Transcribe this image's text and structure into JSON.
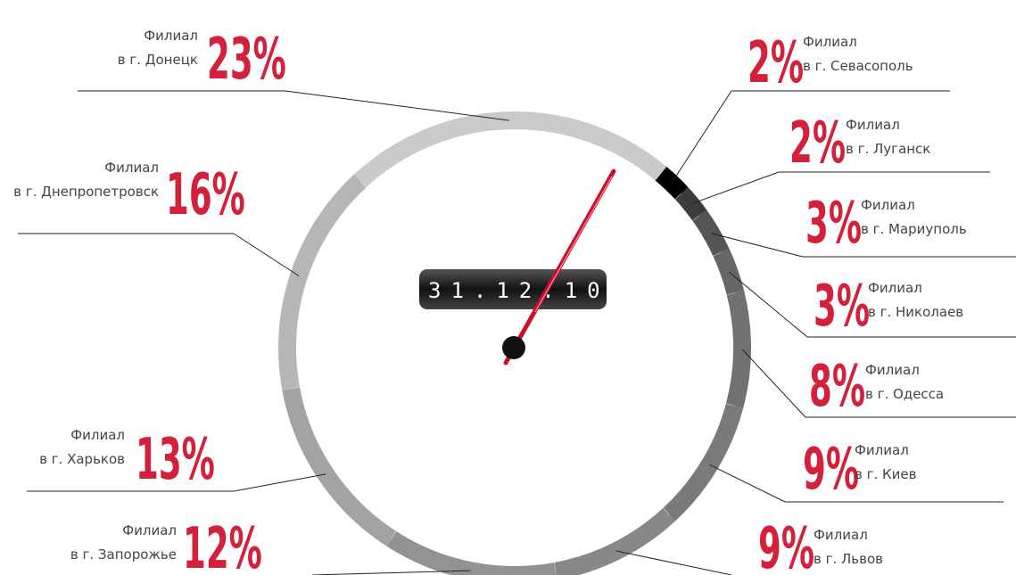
{
  "chart_data": {
    "type": "ring",
    "date": "31.12.10",
    "heading": "Филиал",
    "categories": [
      "в г. Севасополь",
      "в г. Луганск",
      "в г. Мариуполь",
      "в г. Николаев",
      "в г. Одесса",
      "в г. Киев",
      "в г. Львов",
      "в г. Запорожье",
      "в г. Харьков",
      "в г. Днепропетровск",
      "в г. Донецк"
    ],
    "values": [
      2,
      2,
      3,
      3,
      8,
      9,
      9,
      12,
      13,
      16,
      23
    ],
    "value_labels": [
      "2%",
      "2%",
      "3%",
      "3%",
      "8%",
      "9%",
      "9%",
      "12%",
      "13%",
      "16%",
      "23%"
    ],
    "colors": [
      "#000000",
      "#3c3c3c",
      "#555555",
      "#666666",
      "#717171",
      "#7a7a7a",
      "#888888",
      "#929292",
      "#a3a3a3",
      "#b6b6b6",
      "#cacaca"
    ],
    "label_color": "#d3203b"
  }
}
